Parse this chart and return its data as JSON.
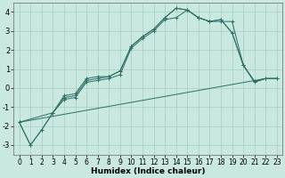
{
  "xlabel": "Humidex (Indice chaleur)",
  "background_color": "#c8e8e0",
  "grid_color": "#a8ccc4",
  "line_color": "#2d6e65",
  "xlim": [
    -0.5,
    23.5
  ],
  "ylim": [
    -3.5,
    4.5
  ],
  "xticks": [
    0,
    1,
    2,
    3,
    4,
    5,
    6,
    7,
    8,
    9,
    10,
    11,
    12,
    13,
    14,
    15,
    16,
    17,
    18,
    19,
    20,
    21,
    22,
    23
  ],
  "yticks": [
    -3,
    -2,
    -1,
    0,
    1,
    2,
    3,
    4
  ],
  "series": [
    {
      "x": [
        0,
        1,
        2,
        3,
        4,
        5,
        6,
        7,
        8,
        9,
        10,
        11,
        12,
        13,
        14,
        15,
        16,
        17,
        18,
        19,
        20,
        21,
        22,
        23
      ],
      "y": [
        -1.8,
        -3.0,
        -2.2,
        -1.3,
        -0.6,
        -0.5,
        0.3,
        0.4,
        0.5,
        0.7,
        2.1,
        2.6,
        3.0,
        3.6,
        3.7,
        4.1,
        3.7,
        3.5,
        3.5,
        3.5,
        1.2,
        0.3,
        0.5,
        0.5
      ],
      "markers": true
    },
    {
      "x": [
        0,
        1,
        2,
        3,
        4,
        5,
        6,
        7,
        8,
        9,
        10,
        11,
        12,
        13,
        14,
        15,
        16,
        17,
        18,
        19,
        20,
        21,
        22,
        23
      ],
      "y": [
        -1.8,
        -3.0,
        -2.2,
        -1.3,
        -0.5,
        -0.4,
        0.4,
        0.5,
        0.6,
        0.9,
        2.2,
        2.7,
        3.1,
        3.7,
        4.2,
        4.1,
        3.7,
        3.5,
        3.6,
        2.9,
        1.2,
        0.35,
        0.5,
        0.5
      ],
      "markers": true
    },
    {
      "x": [
        0,
        3,
        4,
        5,
        6,
        7,
        8,
        9,
        10,
        11,
        12,
        13,
        14,
        15,
        16,
        17,
        18,
        19,
        20,
        21,
        22,
        23
      ],
      "y": [
        -1.8,
        -1.3,
        -0.4,
        -0.3,
        0.5,
        0.6,
        0.6,
        0.9,
        2.2,
        2.7,
        3.1,
        3.7,
        4.2,
        4.1,
        3.7,
        3.5,
        3.6,
        2.9,
        1.2,
        0.35,
        0.5,
        0.5
      ],
      "markers": true
    },
    {
      "x": [
        0,
        22
      ],
      "y": [
        -1.8,
        0.5
      ],
      "markers": false
    }
  ]
}
